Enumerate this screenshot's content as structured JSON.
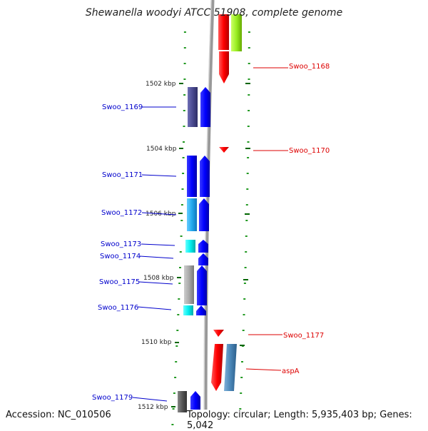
{
  "title": "Shewanella woodyi ATCC 51908, complete genome",
  "accession": "Accession: NC_010506",
  "summary": "Topology: circular; Length: 5,935,403 bp; Genes: 5,042",
  "ticks": [
    "1502 kbp",
    "1504 kbp",
    "1506 kbp",
    "1508 kbp",
    "1510 kbp",
    "1512 kbp"
  ],
  "gene_labels": {
    "forward": [
      "Swoo_1168",
      "Swoo_1170",
      "Swoo_1177",
      "aspA"
    ],
    "reverse": [
      "Swoo_1169",
      "Swoo_1171",
      "Swoo_1172",
      "Swoo_1173",
      "Swoo_1174",
      "Swoo_1175",
      "Swoo_1176",
      "Swoo_1179"
    ]
  },
  "colors": {
    "forward_cds": "#ff0000",
    "reverse_cds": "#0000ff",
    "label_forward": "#dd0000",
    "label_reverse": "#0000cc",
    "backbone": "#888888",
    "tick": "#006600"
  }
}
